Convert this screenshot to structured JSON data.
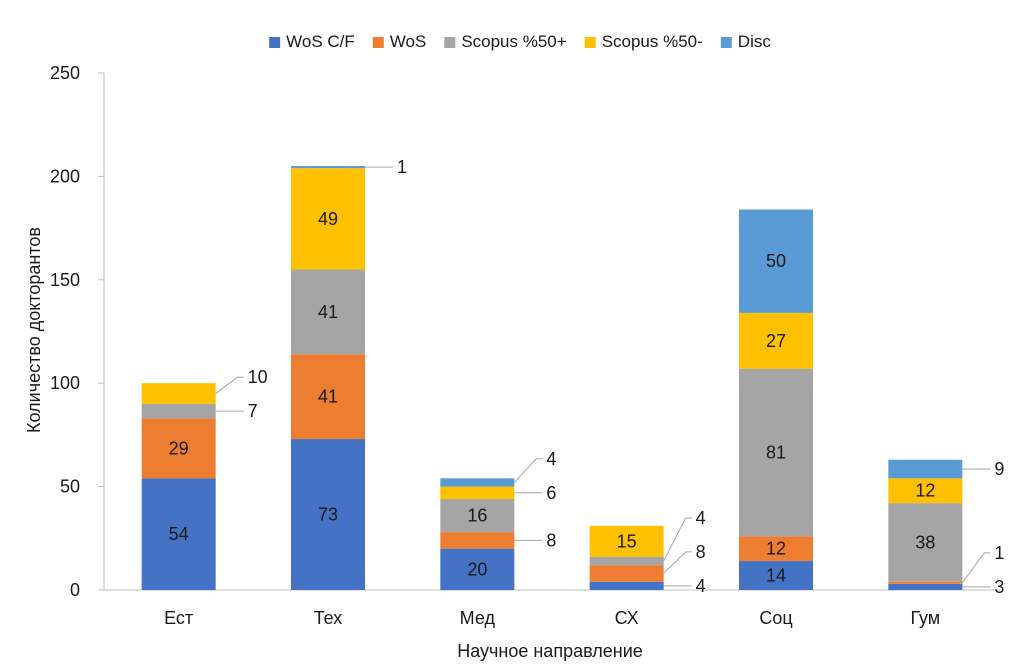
{
  "chart_data": {
    "type": "bar",
    "stacked": true,
    "categories": [
      "Ест",
      "Тех",
      "Мед",
      "СХ",
      "Соц",
      "Гум"
    ],
    "series": [
      {
        "name": "WoS C/F",
        "color": "#4472c4",
        "values": [
          54,
          73,
          20,
          4,
          14,
          3
        ],
        "labels": [
          "54",
          "73",
          "20",
          "4",
          "14",
          "3"
        ]
      },
      {
        "name": "WoS",
        "color": "#ed7d31",
        "values": [
          29,
          41,
          8,
          8,
          12,
          1
        ],
        "labels": [
          "29",
          "41",
          "8",
          "8",
          "12",
          "1"
        ]
      },
      {
        "name": "Scopus %50+",
        "color": "#a5a5a5",
        "values": [
          7,
          41,
          16,
          4,
          81,
          38
        ],
        "labels": [
          "7",
          "41",
          "16",
          "4",
          "81",
          "38"
        ]
      },
      {
        "name": "Scopus %50-",
        "color": "#ffc000",
        "values": [
          10,
          49,
          6,
          15,
          27,
          12
        ],
        "labels": [
          "10",
          "49",
          "6",
          "15",
          "27",
          "12"
        ]
      },
      {
        "name": "Disc",
        "color": "#5b9bd5",
        "values": [
          0,
          1,
          4,
          0,
          50,
          9
        ],
        "labels": [
          "",
          "1",
          "4",
          "",
          "50",
          "9"
        ]
      }
    ],
    "xlabel": "Научное направление",
    "ylabel": "Количество докторантов",
    "ylim": [
      0,
      250
    ],
    "yticks": [
      "0",
      "50",
      "100",
      "150",
      "200",
      "250"
    ],
    "grid": false,
    "legend": "top"
  }
}
